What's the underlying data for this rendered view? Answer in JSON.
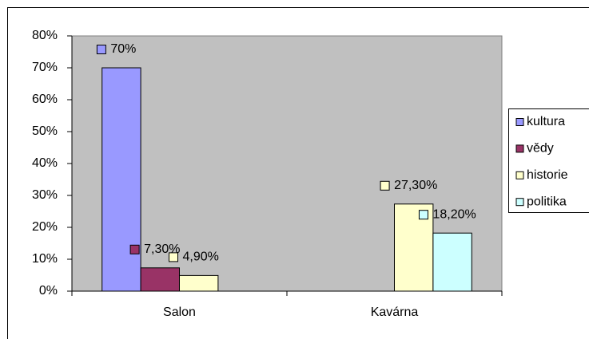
{
  "chart_data": {
    "type": "bar",
    "categories": [
      "Salon",
      "Kavárna"
    ],
    "series": [
      {
        "name": "kultura",
        "color": "#9999ff",
        "values": [
          70,
          null
        ],
        "value_labels": [
          "70%",
          null
        ]
      },
      {
        "name": "vědy",
        "color": "#993366",
        "values": [
          7.3,
          null
        ],
        "value_labels": [
          "7,30%",
          null
        ]
      },
      {
        "name": "historie",
        "color": "#ffffcc",
        "values": [
          4.9,
          27.3
        ],
        "value_labels": [
          "4,90%",
          "27,30%"
        ]
      },
      {
        "name": "politika",
        "color": "#ccffff",
        "values": [
          null,
          18.2
        ],
        "value_labels": [
          null,
          "18,20%"
        ]
      }
    ],
    "ylim": [
      0,
      80
    ],
    "yticks": [
      {
        "value": 0,
        "label": "0%"
      },
      {
        "value": 10,
        "label": "10%"
      },
      {
        "value": 20,
        "label": "20%"
      },
      {
        "value": 30,
        "label": "30%"
      },
      {
        "value": 40,
        "label": "40%"
      },
      {
        "value": 50,
        "label": "50%"
      },
      {
        "value": 60,
        "label": "60%"
      },
      {
        "value": 70,
        "label": "70%"
      },
      {
        "value": 80,
        "label": "80%"
      }
    ],
    "grid": false,
    "legend": "right",
    "plot_background": "#c0c0c0"
  }
}
